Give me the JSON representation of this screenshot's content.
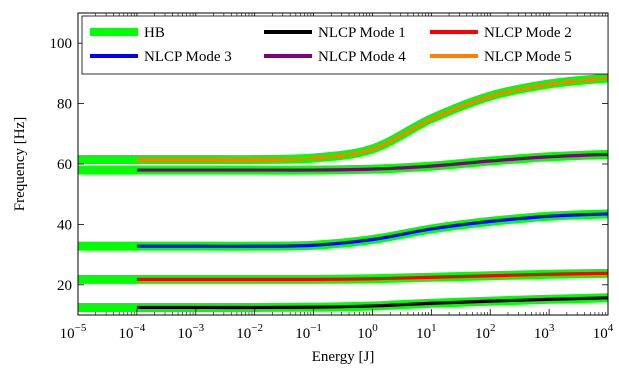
{
  "chart_data": {
    "type": "line",
    "xlabel": "Energy [J]",
    "ylabel": "Frequency [Hz]",
    "xscale": "log",
    "xlim": [
      1e-05,
      10000.0
    ],
    "ylim": [
      10,
      110
    ],
    "grid": false,
    "legend_position": "top",
    "x_tick_labels": [
      {
        "base": "10",
        "exp": "−5",
        "value": 1e-05
      },
      {
        "base": "10",
        "exp": "−4",
        "value": 0.0001
      },
      {
        "base": "10",
        "exp": "−3",
        "value": 0.001
      },
      {
        "base": "10",
        "exp": "−2",
        "value": 0.01
      },
      {
        "base": "10",
        "exp": "−1",
        "value": 0.1
      },
      {
        "base": "10",
        "exp": "0",
        "value": 1
      },
      {
        "base": "10",
        "exp": "1",
        "value": 10
      },
      {
        "base": "10",
        "exp": "2",
        "value": 100
      },
      {
        "base": "10",
        "exp": "3",
        "value": 1000
      },
      {
        "base": "10",
        "exp": "4",
        "value": 10000
      }
    ],
    "y_ticks": [
      20,
      40,
      60,
      80,
      100
    ],
    "x": [
      1e-05,
      0.0001,
      0.001,
      0.01,
      0.1,
      1,
      10,
      100,
      1000,
      10000
    ],
    "series": [
      {
        "name": "HB",
        "color": "#00ff00",
        "role": "thick",
        "curves": [
          [
            12.5,
            12.5,
            12.5,
            12.5,
            12.6,
            13.0,
            13.9,
            14.6,
            15.2,
            15.7
          ],
          [
            21.8,
            21.8,
            21.8,
            21.8,
            21.8,
            22.0,
            22.5,
            23.0,
            23.5,
            23.8
          ],
          [
            32.8,
            32.8,
            32.8,
            32.8,
            33.1,
            35.0,
            38.5,
            41.0,
            42.7,
            43.5
          ],
          [
            58.0,
            58.0,
            58.0,
            58.0,
            58.0,
            58.3,
            59.3,
            61.0,
            62.4,
            63.2
          ],
          [
            61.5,
            61.5,
            61.5,
            61.5,
            62.0,
            65.0,
            75.0,
            82.5,
            86.5,
            88.5
          ]
        ]
      },
      {
        "name": "NLCP Mode 1",
        "color": "#000000",
        "values": [
          null,
          12.5,
          12.5,
          12.5,
          12.6,
          13.0,
          13.9,
          14.6,
          15.2,
          15.7
        ]
      },
      {
        "name": "NLCP Mode 2",
        "color": "#ff0000",
        "values": [
          null,
          21.8,
          21.8,
          21.8,
          21.8,
          22.0,
          22.5,
          23.0,
          23.5,
          23.8
        ]
      },
      {
        "name": "NLCP Mode 3",
        "color": "#0000ff",
        "values": [
          null,
          32.8,
          32.8,
          32.8,
          33.1,
          35.0,
          38.5,
          41.0,
          42.7,
          43.5
        ]
      },
      {
        "name": "NLCP Mode 4",
        "color": "#800080",
        "values": [
          null,
          58.0,
          58.0,
          58.0,
          58.0,
          58.3,
          59.3,
          61.0,
          62.4,
          63.2
        ]
      },
      {
        "name": "NLCP Mode 5",
        "color": "#ff8000",
        "values": [
          null,
          61.5,
          61.5,
          61.5,
          62.0,
          65.0,
          75.0,
          82.5,
          86.5,
          88.5
        ]
      }
    ],
    "legend": [
      {
        "label": "HB",
        "color": "#00ff00"
      },
      {
        "label": "NLCP Mode 1",
        "color": "#000000"
      },
      {
        "label": "NLCP Mode 2",
        "color": "#ff0000"
      },
      {
        "label": "NLCP Mode 3",
        "color": "#0000ff"
      },
      {
        "label": "NLCP Mode 4",
        "color": "#800080"
      },
      {
        "label": "NLCP Mode 5",
        "color": "#ff8000"
      }
    ]
  }
}
